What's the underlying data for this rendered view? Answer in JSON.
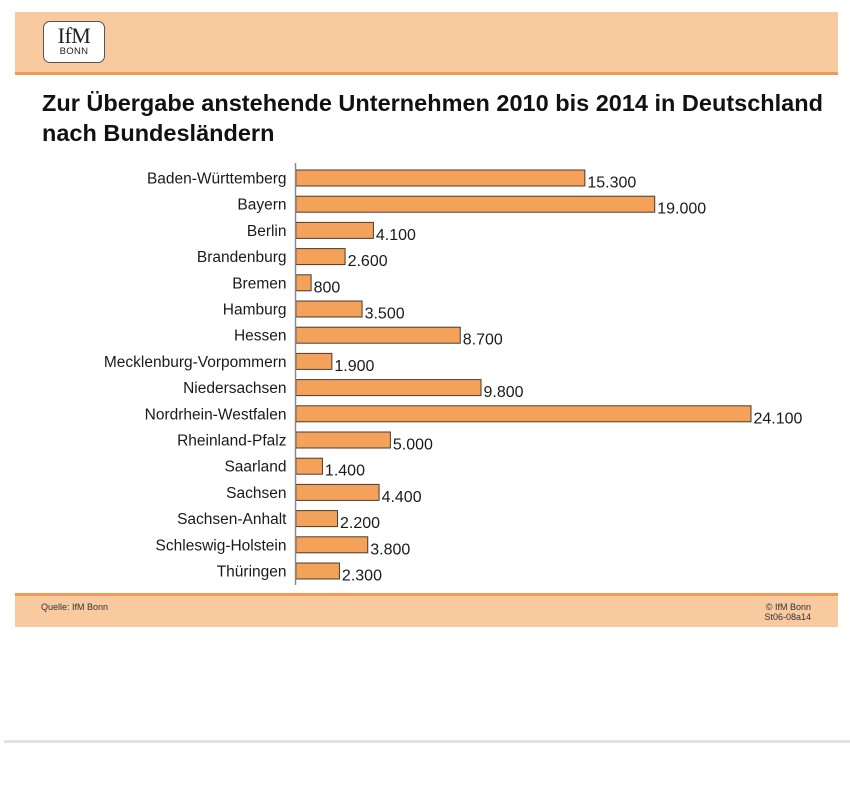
{
  "header": {
    "logo_main": "IfM",
    "logo_sub": "BONN"
  },
  "chart_data": {
    "type": "bar",
    "orientation": "horizontal",
    "title": "Zur Übergabe anstehende Unternehmen 2010 bis 2014 in Deutschland nach Bundesländern",
    "xlabel": "",
    "ylabel": "",
    "categories": [
      "Baden-Württemberg",
      "Bayern",
      "Berlin",
      "Brandenburg",
      "Bremen",
      "Hamburg",
      "Hessen",
      "Mecklenburg-Vorpommern",
      "Niedersachsen",
      "Nordrhein-Westfalen",
      "Rheinland-Pfalz",
      "Saarland",
      "Sachsen",
      "Sachsen-Anhalt",
      "Schleswig-Holstein",
      "Thüringen"
    ],
    "values": [
      15300,
      19000,
      4100,
      2600,
      800,
      3500,
      8700,
      1900,
      9800,
      24100,
      5000,
      1400,
      4400,
      2200,
      3800,
      2300
    ],
    "value_labels": [
      "15.300",
      "19.000",
      "4.100",
      "2.600",
      "800",
      "3.500",
      "8.700",
      "1.900",
      "9.800",
      "24.100",
      "5.000",
      "1.400",
      "4.400",
      "2.200",
      "3.800",
      "2.300"
    ],
    "xlim": [
      0,
      24100
    ],
    "grid": false,
    "legend": "none",
    "bar_color": "#f4a25a",
    "bar_edge_color": "#4a3a30"
  },
  "footer": {
    "source": "Quelle: IfM Bonn",
    "copyright": "© IfM Bonn",
    "code": "St06-08a14"
  }
}
